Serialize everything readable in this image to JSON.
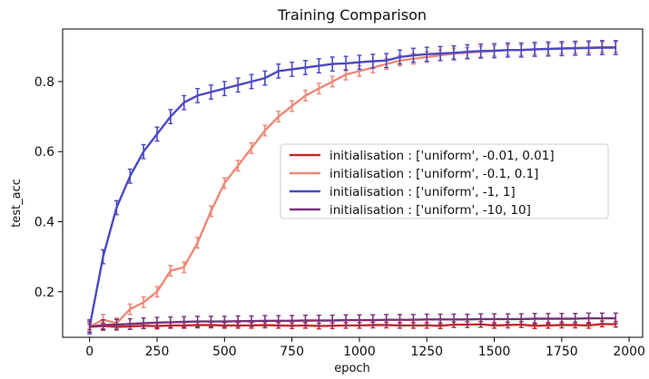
{
  "chart_data": {
    "type": "line",
    "title": "Training Comparison",
    "xlabel": "epoch",
    "ylabel": "test_acc",
    "xlim": [
      -100,
      2050
    ],
    "ylim": [
      0.07,
      0.95
    ],
    "x_ticks": [
      0,
      250,
      500,
      750,
      1000,
      1250,
      1500,
      1750,
      2000
    ],
    "y_ticks": [
      0.2,
      0.4,
      0.6,
      0.8
    ],
    "grid": false,
    "legend_position": "center-right",
    "x": [
      0,
      50,
      100,
      150,
      200,
      250,
      300,
      350,
      400,
      450,
      500,
      550,
      600,
      650,
      700,
      750,
      800,
      850,
      900,
      950,
      1000,
      1050,
      1100,
      1150,
      1200,
      1250,
      1300,
      1350,
      1400,
      1450,
      1500,
      1550,
      1600,
      1650,
      1700,
      1750,
      1800,
      1850,
      1900,
      1950
    ],
    "series": [
      {
        "name": "initialisation : ['uniform', -0.01, 0.01]",
        "color": "#c62a2a",
        "values": [
          0.1,
          0.102,
          0.1,
          0.101,
          0.103,
          0.102,
          0.104,
          0.104,
          0.105,
          0.105,
          0.104,
          0.104,
          0.104,
          0.105,
          0.104,
          0.103,
          0.104,
          0.102,
          0.103,
          0.104,
          0.104,
          0.105,
          0.105,
          0.104,
          0.104,
          0.104,
          0.103,
          0.106,
          0.106,
          0.107,
          0.104,
          0.105,
          0.106,
          0.103,
          0.104,
          0.105,
          0.105,
          0.104,
          0.108,
          0.107
        ],
        "error": 0.008
      },
      {
        "name": "initialisation : ['uniform', -0.1, 0.1]",
        "color": "#ee8877",
        "values": [
          0.1,
          0.12,
          0.11,
          0.15,
          0.17,
          0.2,
          0.26,
          0.27,
          0.34,
          0.43,
          0.51,
          0.56,
          0.61,
          0.66,
          0.7,
          0.73,
          0.76,
          0.78,
          0.8,
          0.82,
          0.83,
          0.84,
          0.85,
          0.86,
          0.865,
          0.87,
          0.875,
          0.88,
          0.882,
          0.885,
          0.888,
          0.89,
          0.89,
          0.892,
          0.893,
          0.895,
          0.896,
          0.897,
          0.898,
          0.898
        ],
        "error": 0.015
      },
      {
        "name": "initialisation : ['uniform', -1, 1]",
        "color": "#4b49c1",
        "values": [
          0.1,
          0.3,
          0.44,
          0.53,
          0.6,
          0.65,
          0.7,
          0.74,
          0.76,
          0.77,
          0.78,
          0.79,
          0.8,
          0.81,
          0.83,
          0.835,
          0.84,
          0.845,
          0.85,
          0.852,
          0.855,
          0.858,
          0.86,
          0.87,
          0.875,
          0.878,
          0.88,
          0.882,
          0.885,
          0.887,
          0.888,
          0.89,
          0.89,
          0.892,
          0.893,
          0.894,
          0.895,
          0.896,
          0.897,
          0.897
        ],
        "error": 0.02
      },
      {
        "name": "initialisation : ['uniform', -10, 10]",
        "color": "#7a3278",
        "values": [
          0.1,
          0.105,
          0.106,
          0.108,
          0.11,
          0.112,
          0.113,
          0.114,
          0.115,
          0.115,
          0.115,
          0.116,
          0.116,
          0.117,
          0.117,
          0.117,
          0.118,
          0.118,
          0.118,
          0.119,
          0.119,
          0.119,
          0.12,
          0.12,
          0.12,
          0.121,
          0.121,
          0.121,
          0.121,
          0.122,
          0.122,
          0.122,
          0.122,
          0.123,
          0.123,
          0.123,
          0.123,
          0.124,
          0.124,
          0.124
        ],
        "error": 0.015
      }
    ]
  }
}
